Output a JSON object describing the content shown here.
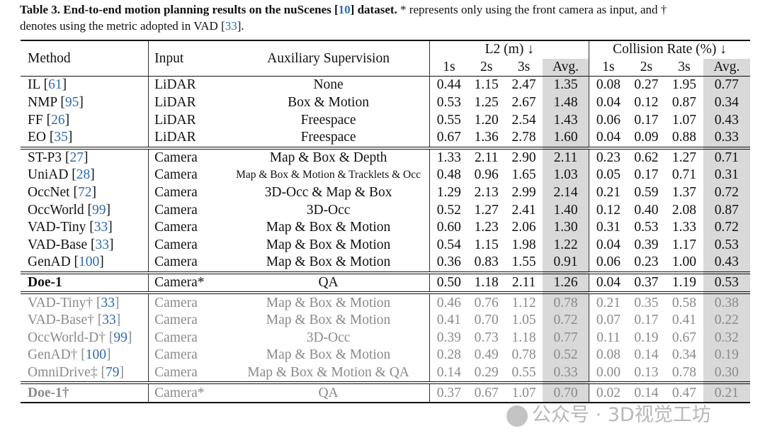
{
  "caption": {
    "label": "Table 3.",
    "title_pre": "End-to-end motion planning results on the nuScenes [",
    "title_ref": "10",
    "title_post": "] dataset.",
    "rest1": " * represents only using the front camera as input, and †",
    "rest2_pre": "denotes using the metric adopted in VAD [",
    "rest2_ref": "33",
    "rest2_post": "]."
  },
  "header": {
    "method": "Method",
    "input": "Input",
    "aux": "Auxiliary Supervision",
    "l2_group": "L2 (m) ↓",
    "collision_group": "Collision Rate (%) ↓",
    "sub": [
      "1s",
      "2s",
      "3s",
      "Avg.",
      "1s",
      "2s",
      "3s",
      "Avg."
    ]
  },
  "groups": [
    {
      "rows": [
        {
          "name": "IL",
          "ref": "61",
          "input": "LiDAR",
          "aux": "None",
          "values": [
            "0.44",
            "1.15",
            "2.47",
            "1.35",
            "0.08",
            "0.27",
            "1.95",
            "0.77"
          ],
          "bold": []
        },
        {
          "name": "NMP",
          "ref": "95",
          "input": "LiDAR",
          "aux": "Box & Motion",
          "values": [
            "0.53",
            "1.25",
            "2.67",
            "1.48",
            "0.04",
            "0.12",
            "0.87",
            "0.34"
          ],
          "bold": []
        },
        {
          "name": "FF",
          "ref": "26",
          "input": "LiDAR",
          "aux": "Freespace",
          "values": [
            "0.55",
            "1.20",
            "2.54",
            "1.43",
            "0.06",
            "0.17",
            "1.07",
            "0.43"
          ],
          "bold": []
        },
        {
          "name": "EO",
          "ref": "35",
          "input": "LiDAR",
          "aux": "Freespace",
          "values": [
            "0.67",
            "1.36",
            "2.78",
            "1.60",
            "0.04",
            "0.09",
            "0.88",
            "0.33"
          ],
          "bold": []
        }
      ]
    },
    {
      "rows": [
        {
          "name": "ST-P3",
          "ref": "27",
          "input": "Camera",
          "aux": "Map & Box & Depth",
          "values": [
            "1.33",
            "2.11",
            "2.90",
            "2.11",
            "0.23",
            "0.62",
            "1.27",
            "0.71"
          ],
          "bold": []
        },
        {
          "name": "UniAD",
          "ref": "28",
          "input": "Camera",
          "aux": "Map & Box & Motion & Tracklets & Occ",
          "aux_small": true,
          "values": [
            "0.48",
            "0.96",
            "1.65",
            "1.03",
            "0.05",
            "0.17",
            "0.71",
            "0.31"
          ],
          "bold": [
            5,
            6,
            7
          ]
        },
        {
          "name": "OccNet",
          "ref": "72",
          "input": "Camera",
          "aux": "3D-Occ & Map & Box",
          "values": [
            "1.29",
            "2.13",
            "2.99",
            "2.14",
            "0.21",
            "0.59",
            "1.37",
            "0.72"
          ],
          "bold": []
        },
        {
          "name": "OccWorld",
          "ref": "99",
          "input": "Camera",
          "aux": "3D-Occ",
          "values": [
            "0.52",
            "1.27",
            "2.41",
            "1.40",
            "0.12",
            "0.40",
            "2.08",
            "0.87"
          ],
          "bold": []
        },
        {
          "name": "VAD-Tiny",
          "ref": "33",
          "input": "Camera",
          "aux": "Map & Box & Motion",
          "values": [
            "0.60",
            "1.23",
            "2.06",
            "1.30",
            "0.31",
            "0.53",
            "1.33",
            "0.72"
          ],
          "bold": []
        },
        {
          "name": "VAD-Base",
          "ref": "33",
          "input": "Camera",
          "aux": "Map & Box & Motion",
          "values": [
            "0.54",
            "1.15",
            "1.98",
            "1.22",
            "0.04",
            "0.39",
            "1.17",
            "0.53"
          ],
          "bold": [
            4
          ]
        },
        {
          "name": "GenAD",
          "ref": "100",
          "input": "Camera",
          "aux": "Map & Box & Motion",
          "values": [
            "0.36",
            "0.83",
            "1.55",
            "0.91",
            "0.06",
            "0.23",
            "1.00",
            "0.43"
          ],
          "bold": [
            0,
            1,
            2,
            3
          ]
        }
      ]
    },
    {
      "rows": [
        {
          "name": "Doe-1",
          "ref": "",
          "name_bold": true,
          "input": "Camera*",
          "aux": "QA",
          "values": [
            "0.50",
            "1.18",
            "2.11",
            "1.26",
            "0.04",
            "0.37",
            "1.19",
            "0.53"
          ],
          "bold": [
            4
          ]
        }
      ]
    },
    {
      "gray": true,
      "rows": [
        {
          "name": "VAD-Tiny†",
          "ref": "33",
          "input": "Camera",
          "aux": "Map & Box & Motion",
          "values": [
            "0.46",
            "0.76",
            "1.12",
            "0.78",
            "0.21",
            "0.35",
            "0.58",
            "0.38"
          ],
          "bold": []
        },
        {
          "name": "VAD-Base†",
          "ref": "33",
          "input": "Camera",
          "aux": "Map & Box & Motion",
          "values": [
            "0.41",
            "0.70",
            "1.05",
            "0.72",
            "0.07",
            "0.17",
            "0.41",
            "0.22"
          ],
          "bold": []
        },
        {
          "name": "OccWorld-D†",
          "ref": "99",
          "input": "Camera",
          "aux": "3D-Occ",
          "values": [
            "0.39",
            "0.73",
            "1.18",
            "0.77",
            "0.11",
            "0.19",
            "0.67",
            "0.32"
          ],
          "bold": []
        },
        {
          "name": "GenAD†",
          "ref": "100",
          "input": "Camera",
          "aux": "Map & Box & Motion",
          "values": [
            "0.28",
            "0.49",
            "0.78",
            "0.52",
            "0.08",
            "0.14",
            "0.34",
            "0.19"
          ],
          "bold": [
            6,
            7
          ]
        },
        {
          "name": "OmniDrive‡",
          "ref": "79",
          "input": "Camera",
          "aux": "Map & Box & Motion & QA",
          "values": [
            "0.14",
            "0.29",
            "0.55",
            "0.33",
            "0.00",
            "0.13",
            "0.78",
            "0.30"
          ],
          "bold": [
            0,
            1,
            2,
            3,
            4,
            5
          ]
        }
      ]
    },
    {
      "gray": true,
      "rows": [
        {
          "name": "Doe-1†",
          "ref": "",
          "name_bold": true,
          "input": "Camera*",
          "aux": "QA",
          "values": [
            "0.37",
            "0.67",
            "1.07",
            "0.70",
            "0.02",
            "0.14",
            "0.47",
            "0.21"
          ],
          "bold": []
        }
      ]
    }
  ],
  "watermark": "公众号 · 3D视觉工坊"
}
